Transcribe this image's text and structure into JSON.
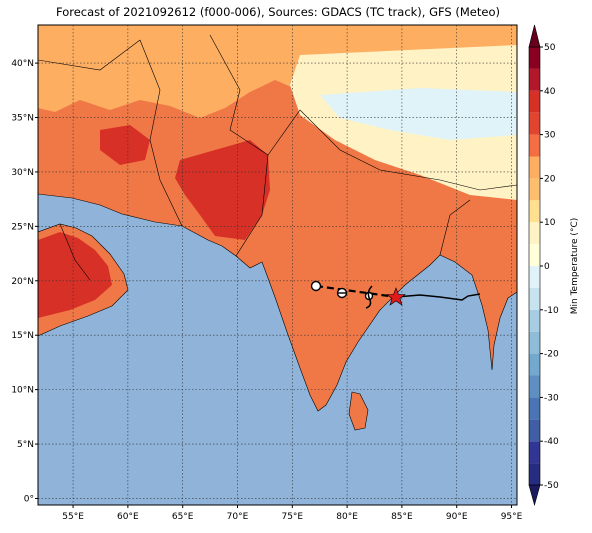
{
  "title": "Forecast of 2021092612 (f000-006), Sources: GDACS (TC track), GFS (Meteo)",
  "lon_range": [
    51.8,
    95.5
  ],
  "lat_range": [
    -0.6,
    43.5
  ],
  "lon_ticks": [
    {
      "value": 55,
      "label": "55°E"
    },
    {
      "value": 60,
      "label": "60°E"
    },
    {
      "value": 65,
      "label": "65°E"
    },
    {
      "value": 70,
      "label": "70°E"
    },
    {
      "value": 75,
      "label": "75°E"
    },
    {
      "value": 80,
      "label": "80°E"
    },
    {
      "value": 85,
      "label": "85°E"
    },
    {
      "value": 90,
      "label": "90°E"
    },
    {
      "value": 95,
      "label": "95°E"
    }
  ],
  "lat_ticks": [
    {
      "value": 0,
      "label": "0°"
    },
    {
      "value": 5,
      "label": "5°N"
    },
    {
      "value": 10,
      "label": "10°N"
    },
    {
      "value": 15,
      "label": "15°N"
    },
    {
      "value": 20,
      "label": "20°N"
    },
    {
      "value": 25,
      "label": "25°N"
    },
    {
      "value": 30,
      "label": "30°N"
    },
    {
      "value": 35,
      "label": "35°N"
    },
    {
      "value": 40,
      "label": "40°N"
    }
  ],
  "colorbar": {
    "label": "Min Temperature (°C)",
    "lim": [
      -50,
      50
    ],
    "ticks": [
      -50,
      -40,
      -30,
      -20,
      -10,
      0,
      10,
      20,
      30,
      40,
      50
    ],
    "colors": [
      "#262d80",
      "#313695",
      "#3f5ea6",
      "#4a74b4",
      "#5f8fc2",
      "#74a9cf",
      "#8fbcd9",
      "#a6cde3",
      "#c6e3ef",
      "#e0f3f8",
      "#ffffd9",
      "#fff2c4",
      "#fee090",
      "#fdbf6f",
      "#fdae61",
      "#f46d43",
      "#e2452f",
      "#d73027",
      "#b3172a",
      "#8b0020"
    ],
    "over": "#67001f",
    "under": "#1a1a5e"
  }
}
